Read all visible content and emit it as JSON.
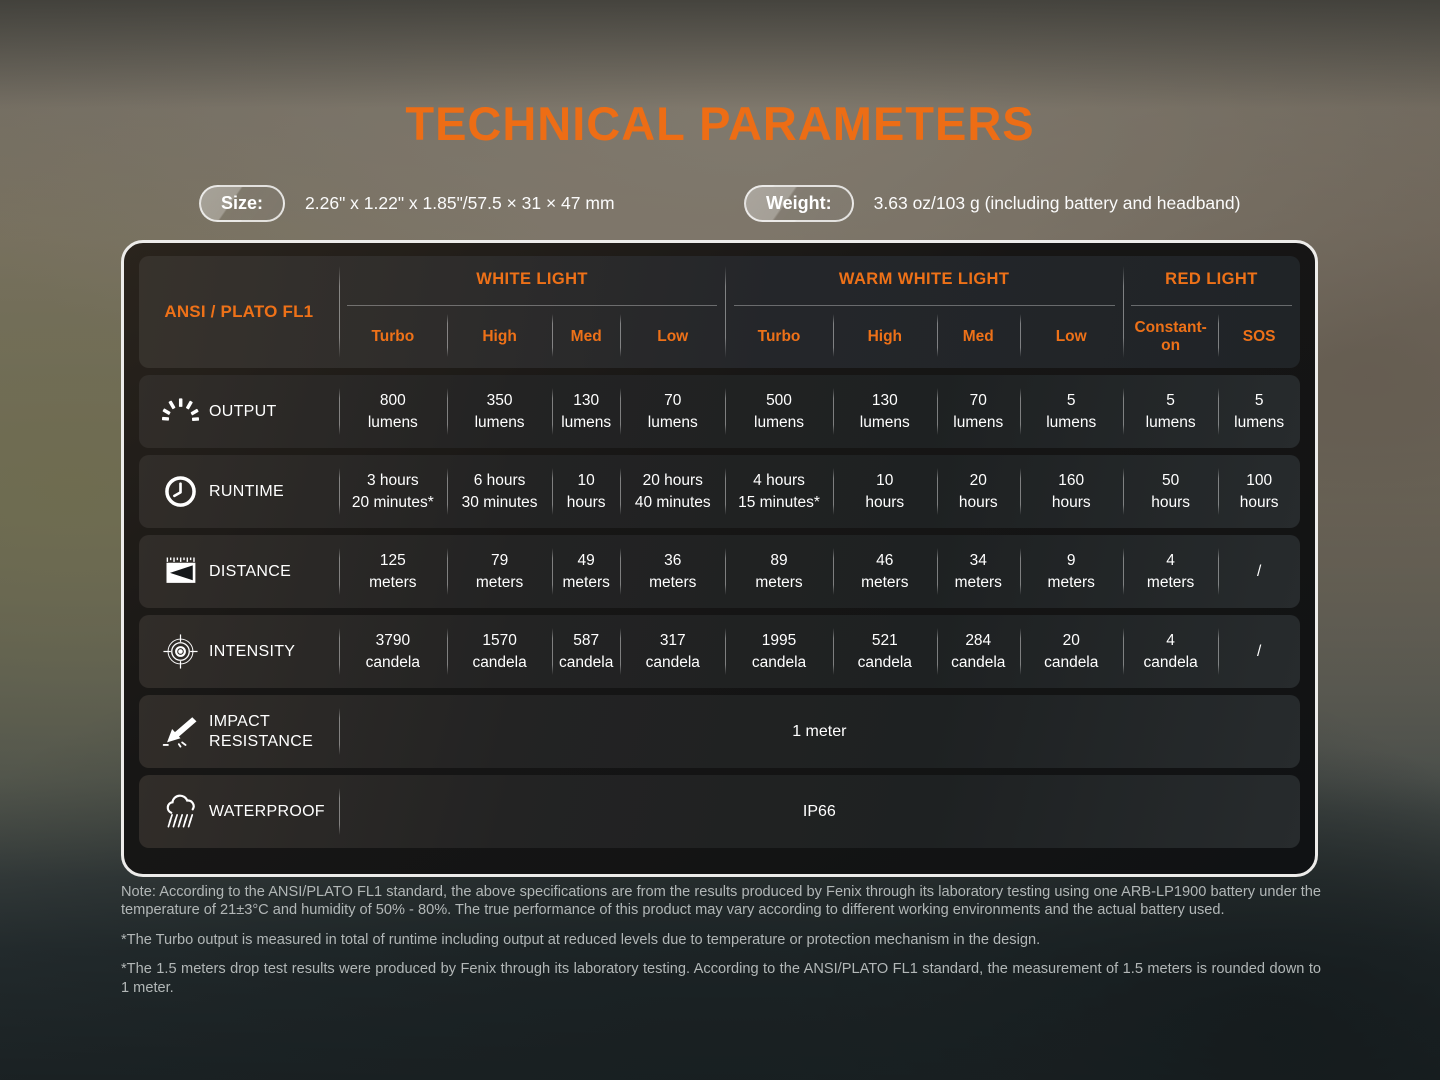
{
  "page": {
    "title": "TECHNICAL PARAMETERS"
  },
  "specs": {
    "size_label": "Size:",
    "size_value": "2.26\" x 1.22\" x 1.85\"/57.5 × 31 × 47 mm",
    "weight_label": "Weight:",
    "weight_value": "3.63 oz/103 g (including battery and headband)"
  },
  "table": {
    "corner_label": "ANSI / PLATO FL1",
    "groups": [
      {
        "label": "WHITE LIGHT",
        "modes": [
          "Turbo",
          "High",
          "Med",
          "Low"
        ]
      },
      {
        "label": "WARM WHITE LIGHT",
        "modes": [
          "Turbo",
          "High",
          "Med",
          "Low"
        ]
      },
      {
        "label": "RED LIGHT",
        "modes": [
          "Constant-on",
          "SOS"
        ]
      }
    ],
    "rows": [
      {
        "label": "OUTPUT",
        "icon": "sunrise-icon",
        "cells": [
          [
            "800",
            "lumens"
          ],
          [
            "350",
            "lumens"
          ],
          [
            "130",
            "lumens"
          ],
          [
            "70",
            "lumens"
          ],
          [
            "500",
            "lumens"
          ],
          [
            "130",
            "lumens"
          ],
          [
            "70",
            "lumens"
          ],
          [
            "5",
            "lumens"
          ],
          [
            "5",
            "lumens"
          ],
          [
            "5",
            "lumens"
          ]
        ]
      },
      {
        "label": "RUNTIME",
        "icon": "clock-icon",
        "cells": [
          [
            "3 hours",
            "20 minutes*"
          ],
          [
            "6 hours",
            "30 minutes"
          ],
          [
            "10",
            "hours"
          ],
          [
            "20 hours",
            "40 minutes"
          ],
          [
            "4 hours",
            "15 minutes*"
          ],
          [
            "10",
            "hours"
          ],
          [
            "20",
            "hours"
          ],
          [
            "160",
            "hours"
          ],
          [
            "50",
            "hours"
          ],
          [
            "100",
            "hours"
          ]
        ]
      },
      {
        "label": "DISTANCE",
        "icon": "beam-distance-icon",
        "cells": [
          [
            "125",
            "meters"
          ],
          [
            "79",
            "meters"
          ],
          [
            "49",
            "meters"
          ],
          [
            "36",
            "meters"
          ],
          [
            "89",
            "meters"
          ],
          [
            "46",
            "meters"
          ],
          [
            "34",
            "meters"
          ],
          [
            "9",
            "meters"
          ],
          [
            "4",
            "meters"
          ],
          [
            "/",
            ""
          ]
        ]
      },
      {
        "label": "INTENSITY",
        "icon": "target-icon",
        "cells": [
          [
            "3790",
            "candela"
          ],
          [
            "1570",
            "candela"
          ],
          [
            "587",
            "candela"
          ],
          [
            "317",
            "candela"
          ],
          [
            "1995",
            "candela"
          ],
          [
            "521",
            "candela"
          ],
          [
            "284",
            "candela"
          ],
          [
            "20",
            "candela"
          ],
          [
            "4",
            "candela"
          ],
          [
            "/",
            ""
          ]
        ]
      }
    ],
    "span_rows": [
      {
        "label": "IMPACT RESISTANCE",
        "icon": "impact-icon",
        "value": "1 meter"
      },
      {
        "label": "WATERPROOF",
        "icon": "waterproof-icon",
        "value": "IP66"
      }
    ]
  },
  "notes": [
    "Note: According to the ANSI/PLATO FL1 standard, the above specifications are from the results produced by Fenix through its laboratory testing using one ARB-LP1900 battery under the temperature of 21±3°C and humidity of 50% - 80%. The true performance of this product may vary according to different working environments and the actual battery used.",
    "*The Turbo output is measured in total of runtime including output at reduced levels due to temperature or protection mechanism in the design.",
    "*The 1.5 meters drop test results were produced by Fenix through its laboratory testing. According to the ANSI/PLATO FL1 standard, the measurement of 1.5 meters is rounded down to 1 meter."
  ],
  "colors": {
    "accent": "#EE7118",
    "note_text": "#B2B7B7",
    "table_border": "#EDECEA"
  }
}
